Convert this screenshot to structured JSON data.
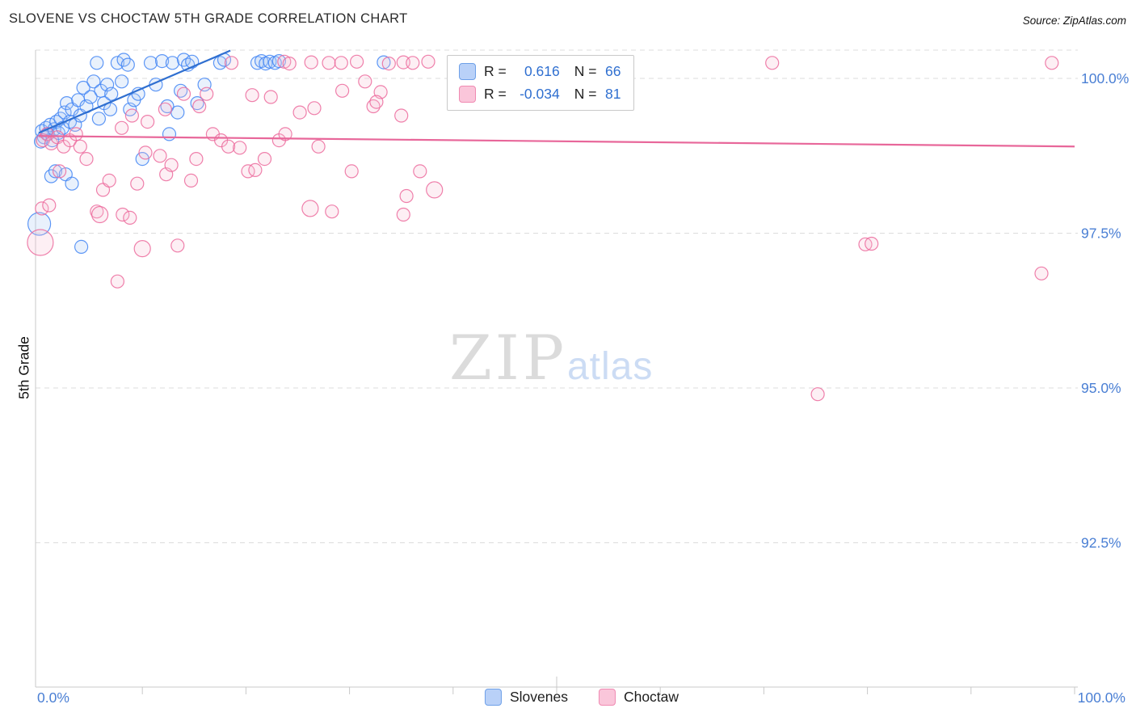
{
  "header": {
    "title": "SLOVENE VS CHOCTAW 5TH GRADE CORRELATION CHART",
    "source": "Source: ZipAtlas.com"
  },
  "watermark": {
    "zip": "ZIP",
    "atlas": "atlas"
  },
  "legend_box": {
    "rows": [
      {
        "series": "Slovenes",
        "r_label": "R =",
        "r_value": "0.616",
        "n_label": "N =",
        "n_value": "66"
      },
      {
        "series": "Choctaw",
        "r_label": "R =",
        "r_value": "-0.034",
        "n_label": "N =",
        "n_value": "81"
      }
    ]
  },
  "axes": {
    "y_label": "5th Grade",
    "y_ticks": [
      {
        "value": 100.0,
        "label": "100.0%"
      },
      {
        "value": 97.5,
        "label": "97.5%"
      },
      {
        "value": 95.0,
        "label": "95.0%"
      },
      {
        "value": 92.5,
        "label": "92.5%"
      }
    ],
    "x_min_label": "0.0%",
    "x_max_label": "100.0%"
  },
  "bottom_legend": [
    {
      "name": "Slovenes"
    },
    {
      "name": "Choctaw"
    }
  ],
  "colors": {
    "blue_stroke": "#4285f4",
    "blue_fill": "#a9c7f4",
    "blue_line": "#2f6fd0",
    "pink_stroke": "#ec6a9c",
    "pink_fill": "#f8c0d5",
    "pink_line": "#e8679a",
    "tick_text": "#4a7fd4"
  },
  "chart_data": {
    "type": "scatter",
    "title": "SLOVENE VS CHOCTAW 5TH GRADE CORRELATION CHART",
    "xlabel": "",
    "ylabel": "5th Grade",
    "x_range": [
      0,
      100
    ],
    "y_range": [
      90.2,
      100.45
    ],
    "grid": "horizontal-dashed",
    "legend_position": "top-center",
    "series": [
      {
        "name": "Slovenes",
        "R": 0.616,
        "N": 66,
        "color": "#4285f4",
        "fill": "#a9c7f4",
        "line": "#2f6fd0",
        "points": [
          [
            0.3,
            99.15
          ],
          [
            0.5,
            99.05
          ],
          [
            0.7,
            99.2
          ],
          [
            0.9,
            99.1
          ],
          [
            1.1,
            99.25
          ],
          [
            1.3,
            99.0
          ],
          [
            1.5,
            99.18
          ],
          [
            1.7,
            99.3
          ],
          [
            1.9,
            99.12
          ],
          [
            2.1,
            99.35
          ],
          [
            2.3,
            99.2
          ],
          [
            2.5,
            99.45
          ],
          [
            2.7,
            99.6
          ],
          [
            3.0,
            99.3
          ],
          [
            3.2,
            99.5
          ],
          [
            3.5,
            99.25
          ],
          [
            3.8,
            99.65
          ],
          [
            4.0,
            99.4
          ],
          [
            4.3,
            99.85
          ],
          [
            4.6,
            99.55
          ],
          [
            5.0,
            99.7
          ],
          [
            5.3,
            99.95
          ],
          [
            5.6,
            100.25
          ],
          [
            5.8,
            99.35
          ],
          [
            6.0,
            99.8
          ],
          [
            6.3,
            99.6
          ],
          [
            6.6,
            99.9
          ],
          [
            6.9,
            99.5
          ],
          [
            7.0,
            99.75
          ],
          [
            7.6,
            100.25
          ],
          [
            8.0,
            99.95
          ],
          [
            8.2,
            100.3
          ],
          [
            8.6,
            100.22
          ],
          [
            8.8,
            99.5
          ],
          [
            9.2,
            99.65
          ],
          [
            9.6,
            99.75
          ],
          [
            10.0,
            98.7
          ],
          [
            10.8,
            100.25
          ],
          [
            11.3,
            99.9
          ],
          [
            11.9,
            100.28
          ],
          [
            12.4,
            99.55
          ],
          [
            12.6,
            99.1
          ],
          [
            12.9,
            100.25
          ],
          [
            13.4,
            99.45
          ],
          [
            13.7,
            99.8
          ],
          [
            14.0,
            100.3
          ],
          [
            14.4,
            100.22
          ],
          [
            14.8,
            100.27
          ],
          [
            15.3,
            99.6
          ],
          [
            16.0,
            99.9
          ],
          [
            17.5,
            100.25
          ],
          [
            17.9,
            100.3
          ],
          [
            21.1,
            100.25
          ],
          [
            21.5,
            100.28
          ],
          [
            21.9,
            100.24
          ],
          [
            22.3,
            100.27
          ],
          [
            22.8,
            100.25
          ],
          [
            23.2,
            100.28
          ],
          [
            33.3,
            100.26
          ],
          [
            0.05,
            97.65,
            14
          ],
          [
            1.2,
            98.42
          ],
          [
            1.6,
            98.5
          ],
          [
            2.6,
            98.45
          ],
          [
            3.2,
            98.3
          ],
          [
            4.1,
            97.28
          ],
          [
            0.2,
            98.98
          ]
        ]
      },
      {
        "name": "Choctaw",
        "R": -0.034,
        "N": 81,
        "color": "#ec6a9c",
        "fill": "#f8c0d5",
        "line": "#e8679a",
        "points": [
          [
            18.6,
            100.25
          ],
          [
            23.7,
            100.27
          ],
          [
            24.2,
            100.24
          ],
          [
            26.3,
            100.26
          ],
          [
            28.0,
            100.25
          ],
          [
            29.2,
            100.25
          ],
          [
            30.7,
            100.27
          ],
          [
            33.8,
            100.24
          ],
          [
            35.2,
            100.26
          ],
          [
            36.1,
            100.25
          ],
          [
            37.6,
            100.27
          ],
          [
            45.7,
            100.25
          ],
          [
            70.8,
            100.25
          ],
          [
            97.8,
            100.25
          ],
          [
            16.2,
            99.75
          ],
          [
            20.6,
            99.73
          ],
          [
            22.4,
            99.7
          ],
          [
            25.2,
            99.45
          ],
          [
            26.6,
            99.52
          ],
          [
            29.3,
            99.8
          ],
          [
            31.5,
            99.95
          ],
          [
            32.3,
            99.55
          ],
          [
            33.0,
            99.78
          ],
          [
            35.0,
            99.4
          ],
          [
            15.5,
            99.55
          ],
          [
            14.0,
            99.75
          ],
          [
            12.2,
            99.5
          ],
          [
            9.0,
            99.4
          ],
          [
            10.5,
            99.3
          ],
          [
            32.6,
            99.62
          ],
          [
            0.4,
            99.0
          ],
          [
            0.8,
            99.1
          ],
          [
            1.2,
            98.95
          ],
          [
            1.8,
            99.05
          ],
          [
            2.4,
            98.9
          ],
          [
            3.0,
            99.0
          ],
          [
            3.6,
            99.1
          ],
          [
            2.0,
            98.5
          ],
          [
            4.0,
            98.9
          ],
          [
            4.6,
            98.7
          ],
          [
            6.2,
            98.2
          ],
          [
            6.8,
            98.35
          ],
          [
            8.0,
            99.2
          ],
          [
            9.5,
            98.3
          ],
          [
            10.3,
            98.8
          ],
          [
            11.7,
            98.75
          ],
          [
            12.3,
            98.45
          ],
          [
            12.8,
            98.6
          ],
          [
            14.7,
            98.35
          ],
          [
            15.2,
            98.7
          ],
          [
            16.8,
            99.1
          ],
          [
            17.6,
            99.0
          ],
          [
            18.3,
            98.9
          ],
          [
            19.4,
            98.88
          ],
          [
            20.2,
            98.5
          ],
          [
            20.9,
            98.52
          ],
          [
            21.8,
            98.7
          ],
          [
            23.2,
            99.0
          ],
          [
            23.8,
            99.1
          ],
          [
            26.2,
            97.9,
            10
          ],
          [
            27.0,
            98.9
          ],
          [
            30.2,
            98.5
          ],
          [
            35.2,
            97.8
          ],
          [
            36.8,
            98.5
          ],
          [
            38.2,
            98.2,
            10
          ],
          [
            0.3,
            97.9
          ],
          [
            1.0,
            97.95
          ],
          [
            0.15,
            97.35,
            16
          ],
          [
            5.6,
            97.85
          ],
          [
            5.9,
            97.8,
            10
          ],
          [
            7.6,
            96.72
          ],
          [
            8.1,
            97.8
          ],
          [
            8.8,
            97.75
          ],
          [
            10.0,
            97.25,
            10
          ],
          [
            13.4,
            97.3
          ],
          [
            28.3,
            97.85
          ],
          [
            35.5,
            98.1
          ],
          [
            75.2,
            94.9
          ],
          [
            79.8,
            97.32
          ],
          [
            80.4,
            97.33
          ],
          [
            96.8,
            96.85
          ]
        ]
      }
    ],
    "trendlines": [
      {
        "series": "Slovenes",
        "x1": 0,
        "y1": 99.12,
        "x2": 18.5,
        "y2": 100.45
      },
      {
        "series": "Choctaw",
        "x1": 0,
        "y1": 99.07,
        "x2": 100,
        "y2": 98.9
      }
    ]
  }
}
